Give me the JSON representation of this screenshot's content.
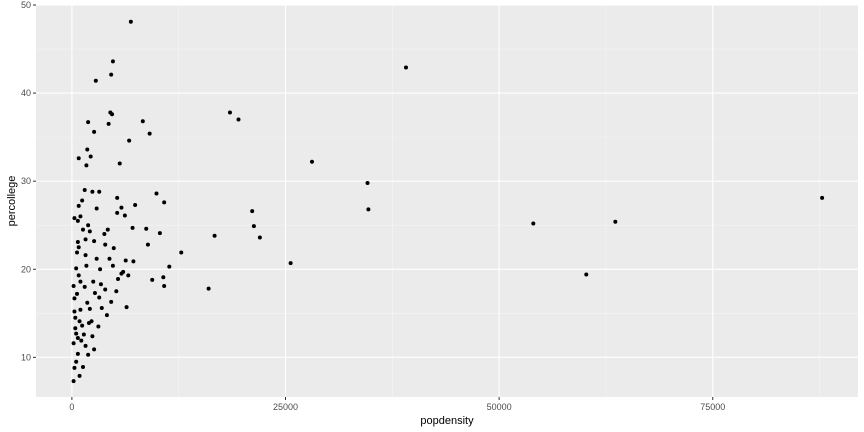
{
  "chart_data": {
    "type": "scatter",
    "xlabel": "popdensity",
    "ylabel": "percollege",
    "xlim": [
      -4200,
      92000
    ],
    "ylim": [
      5.5,
      50
    ],
    "x_ticks": [
      0,
      25000,
      50000,
      75000
    ],
    "x_tick_labels": [
      "0",
      "25000",
      "50000",
      "75000"
    ],
    "y_ticks": [
      10,
      20,
      30,
      40,
      50
    ],
    "y_tick_labels": [
      "10",
      "20",
      "30",
      "40",
      "50"
    ],
    "grid": true,
    "legend": "none",
    "colors": {
      "panel": "#ebebeb",
      "grid_major": "#ffffff",
      "grid_minor": "#f5f5f5",
      "point": "#000000",
      "tick_text": "#4d4d4d",
      "tick_mark": "#333333"
    },
    "points": [
      [
        6900,
        48.1
      ],
      [
        39100,
        42.9
      ],
      [
        2800,
        41.4
      ],
      [
        4800,
        43.6
      ],
      [
        4600,
        42.1
      ],
      [
        4500,
        37.8
      ],
      [
        4700,
        37.6
      ],
      [
        4300,
        36.5
      ],
      [
        1900,
        36.7
      ],
      [
        2600,
        35.6
      ],
      [
        8300,
        36.8
      ],
      [
        9100,
        35.4
      ],
      [
        18500,
        37.8
      ],
      [
        19500,
        37.0
      ],
      [
        6700,
        34.6
      ],
      [
        800,
        32.6
      ],
      [
        1800,
        33.6
      ],
      [
        2200,
        32.8
      ],
      [
        1700,
        31.8
      ],
      [
        5600,
        32.0
      ],
      [
        28100,
        32.2
      ],
      [
        34600,
        29.8
      ],
      [
        87800,
        28.1
      ],
      [
        9900,
        28.6
      ],
      [
        10800,
        27.6
      ],
      [
        7400,
        27.3
      ],
      [
        5800,
        27.0
      ],
      [
        5300,
        26.4
      ],
      [
        21100,
        26.6
      ],
      [
        34700,
        26.8
      ],
      [
        1000,
        26.0
      ],
      [
        700,
        25.5
      ],
      [
        300,
        25.8
      ],
      [
        2400,
        28.8
      ],
      [
        1500,
        29.0
      ],
      [
        3200,
        28.8
      ],
      [
        1200,
        27.8
      ],
      [
        800,
        27.2
      ],
      [
        6200,
        26.1
      ],
      [
        5300,
        28.1
      ],
      [
        2100,
        24.3
      ],
      [
        1900,
        25.0
      ],
      [
        3800,
        24.0
      ],
      [
        4200,
        24.5
      ],
      [
        8700,
        24.6
      ],
      [
        7100,
        24.7
      ],
      [
        21300,
        24.9
      ],
      [
        54000,
        25.2
      ],
      [
        63600,
        25.4
      ],
      [
        1600,
        23.4
      ],
      [
        2600,
        23.2
      ],
      [
        3900,
        22.8
      ],
      [
        8900,
        22.8
      ],
      [
        10300,
        24.1
      ],
      [
        16700,
        23.8
      ],
      [
        22000,
        23.6
      ],
      [
        12800,
        21.9
      ],
      [
        800,
        22.5
      ],
      [
        1600,
        21.6
      ],
      [
        2900,
        21.2
      ],
      [
        4400,
        21.2
      ],
      [
        6300,
        21.0
      ],
      [
        7200,
        20.9
      ],
      [
        11400,
        20.3
      ],
      [
        25600,
        20.7
      ],
      [
        500,
        20.1
      ],
      [
        1700,
        20.4
      ],
      [
        3300,
        20.0
      ],
      [
        4800,
        20.4
      ],
      [
        6000,
        19.7
      ],
      [
        6600,
        19.3
      ],
      [
        10700,
        19.1
      ],
      [
        9400,
        18.8
      ],
      [
        60200,
        19.4
      ],
      [
        16000,
        17.8
      ],
      [
        10800,
        18.1
      ],
      [
        1000,
        18.6
      ],
      [
        2500,
        18.6
      ],
      [
        3900,
        17.7
      ],
      [
        5200,
        17.5
      ],
      [
        6400,
        15.7
      ],
      [
        3200,
        16.8
      ],
      [
        2100,
        15.5
      ],
      [
        1000,
        15.4
      ],
      [
        300,
        16.7
      ],
      [
        4600,
        16.3
      ],
      [
        2300,
        14.1
      ],
      [
        1200,
        13.6
      ],
      [
        500,
        12.7
      ],
      [
        1100,
        11.9
      ],
      [
        1600,
        11.3
      ],
      [
        2600,
        10.9
      ],
      [
        700,
        10.4
      ],
      [
        500,
        9.5
      ],
      [
        300,
        8.8
      ],
      [
        200,
        7.3
      ],
      [
        900,
        7.9
      ],
      [
        1300,
        8.9
      ],
      [
        1900,
        10.3
      ],
      [
        2400,
        12.4
      ],
      [
        3100,
        13.5
      ],
      [
        400,
        14.5
      ],
      [
        300,
        15.2
      ],
      [
        600,
        17.2
      ],
      [
        200,
        18.1
      ],
      [
        800,
        19.3
      ],
      [
        1500,
        18.0
      ],
      [
        1800,
        16.2
      ],
      [
        2700,
        17.3
      ],
      [
        3500,
        15.6
      ],
      [
        4100,
        14.8
      ],
      [
        5400,
        18.9
      ],
      [
        600,
        21.9
      ],
      [
        1300,
        24.5
      ],
      [
        2900,
        26.9
      ],
      [
        700,
        23.1
      ],
      [
        400,
        13.3
      ],
      [
        900,
        14.1
      ],
      [
        1400,
        12.6
      ],
      [
        200,
        11.6
      ],
      [
        700,
        12.2
      ],
      [
        2000,
        13.9
      ],
      [
        3400,
        18.3
      ],
      [
        4900,
        22.4
      ],
      [
        5800,
        19.5
      ]
    ]
  }
}
